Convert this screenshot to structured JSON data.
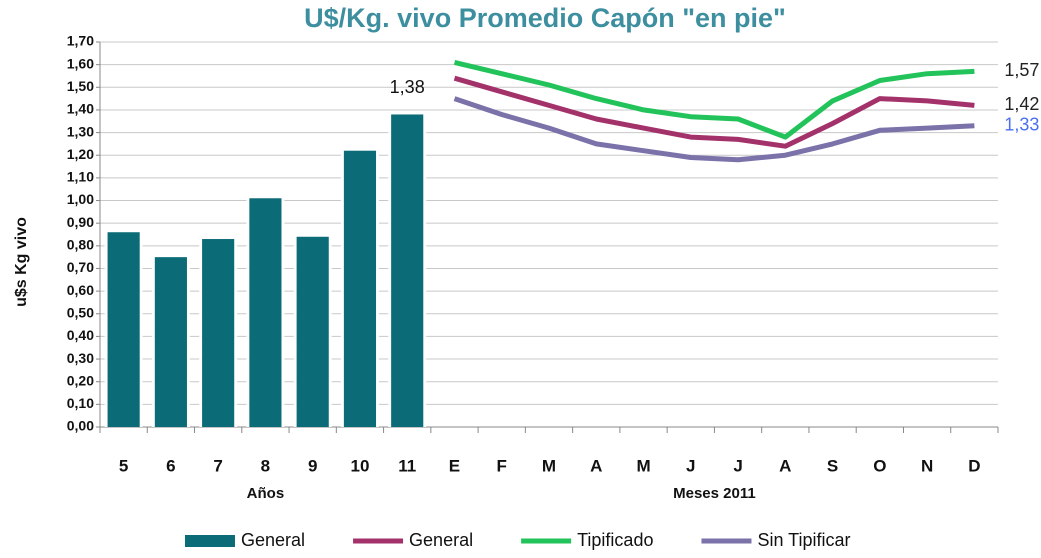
{
  "chart_data": {
    "type": "combo",
    "title": "U$/Kg. vivo Promedio Capón \"en pie\"",
    "y_label": "u$s Kg vivo",
    "categories": [
      "5",
      "6",
      "7",
      "8",
      "9",
      "10",
      "11",
      "E",
      "F",
      "M",
      "A",
      "M",
      "J",
      "J",
      "A",
      "S",
      "O",
      "N",
      "D"
    ],
    "x_groups": [
      {
        "label": "Años",
        "count": 7
      },
      {
        "label": "Meses 2011",
        "count": 12
      }
    ],
    "ylim": [
      0,
      1.7
    ],
    "yticks": [
      {
        "value": 0,
        "label": "0,00"
      },
      {
        "value": 0.1,
        "label": "0,10"
      },
      {
        "value": 0.2,
        "label": "0,20"
      },
      {
        "value": 0.3,
        "label": "0,30"
      },
      {
        "value": 0.4,
        "label": "0,40"
      },
      {
        "value": 0.5,
        "label": "0,50"
      },
      {
        "value": 0.6,
        "label": "0,60"
      },
      {
        "value": 0.7,
        "label": "0,70"
      },
      {
        "value": 0.8,
        "label": "0,80"
      },
      {
        "value": 0.9,
        "label": "0,90"
      },
      {
        "value": 1.0,
        "label": "1,00"
      },
      {
        "value": 1.1,
        "label": "1,10"
      },
      {
        "value": 1.2,
        "label": "1,20"
      },
      {
        "value": 1.3,
        "label": "1,30"
      },
      {
        "value": 1.4,
        "label": "1,40"
      },
      {
        "value": 1.5,
        "label": "1,50"
      },
      {
        "value": 1.6,
        "label": "1,60"
      },
      {
        "value": 1.7,
        "label": "1,70"
      }
    ],
    "grid": true,
    "legend": "bottom",
    "series": [
      {
        "name": "General",
        "type": "bar",
        "color": "#0b6b77",
        "values": [
          0.86,
          0.75,
          0.83,
          1.01,
          0.84,
          1.22,
          1.38,
          null,
          null,
          null,
          null,
          null,
          null,
          null,
          null,
          null,
          null,
          null,
          null
        ],
        "value_labels": [
          null,
          null,
          null,
          null,
          null,
          null,
          "1,38",
          null,
          null,
          null,
          null,
          null,
          null,
          null,
          null,
          null,
          null,
          null,
          null
        ]
      },
      {
        "name": "General",
        "type": "line",
        "color": "#a3326b",
        "label_color": "#222222",
        "values": [
          null,
          null,
          null,
          null,
          null,
          null,
          null,
          1.54,
          1.48,
          1.42,
          1.36,
          1.32,
          1.28,
          1.27,
          1.24,
          1.34,
          1.45,
          1.44,
          1.42
        ],
        "value_labels": [
          null,
          null,
          null,
          null,
          null,
          null,
          null,
          null,
          null,
          null,
          null,
          null,
          null,
          null,
          null,
          null,
          null,
          null,
          "1,42"
        ]
      },
      {
        "name": "Tipificado",
        "type": "line",
        "color": "#22c35a",
        "label_color": "#222222",
        "values": [
          null,
          null,
          null,
          null,
          null,
          null,
          null,
          1.61,
          1.56,
          1.51,
          1.45,
          1.4,
          1.37,
          1.36,
          1.28,
          1.44,
          1.53,
          1.56,
          1.57
        ],
        "value_labels": [
          null,
          null,
          null,
          null,
          null,
          null,
          null,
          null,
          null,
          null,
          null,
          null,
          null,
          null,
          null,
          null,
          null,
          null,
          "1,57"
        ]
      },
      {
        "name": "Sin Tipificar",
        "type": "line",
        "color": "#7a72a9",
        "label_color": "#4a6ff0",
        "values": [
          null,
          null,
          null,
          null,
          null,
          null,
          null,
          1.45,
          1.38,
          1.32,
          1.25,
          1.22,
          1.19,
          1.18,
          1.2,
          1.25,
          1.31,
          1.32,
          1.33
        ],
        "value_labels": [
          null,
          null,
          null,
          null,
          null,
          null,
          null,
          null,
          null,
          null,
          null,
          null,
          null,
          null,
          null,
          null,
          null,
          null,
          "1,33"
        ]
      }
    ]
  }
}
